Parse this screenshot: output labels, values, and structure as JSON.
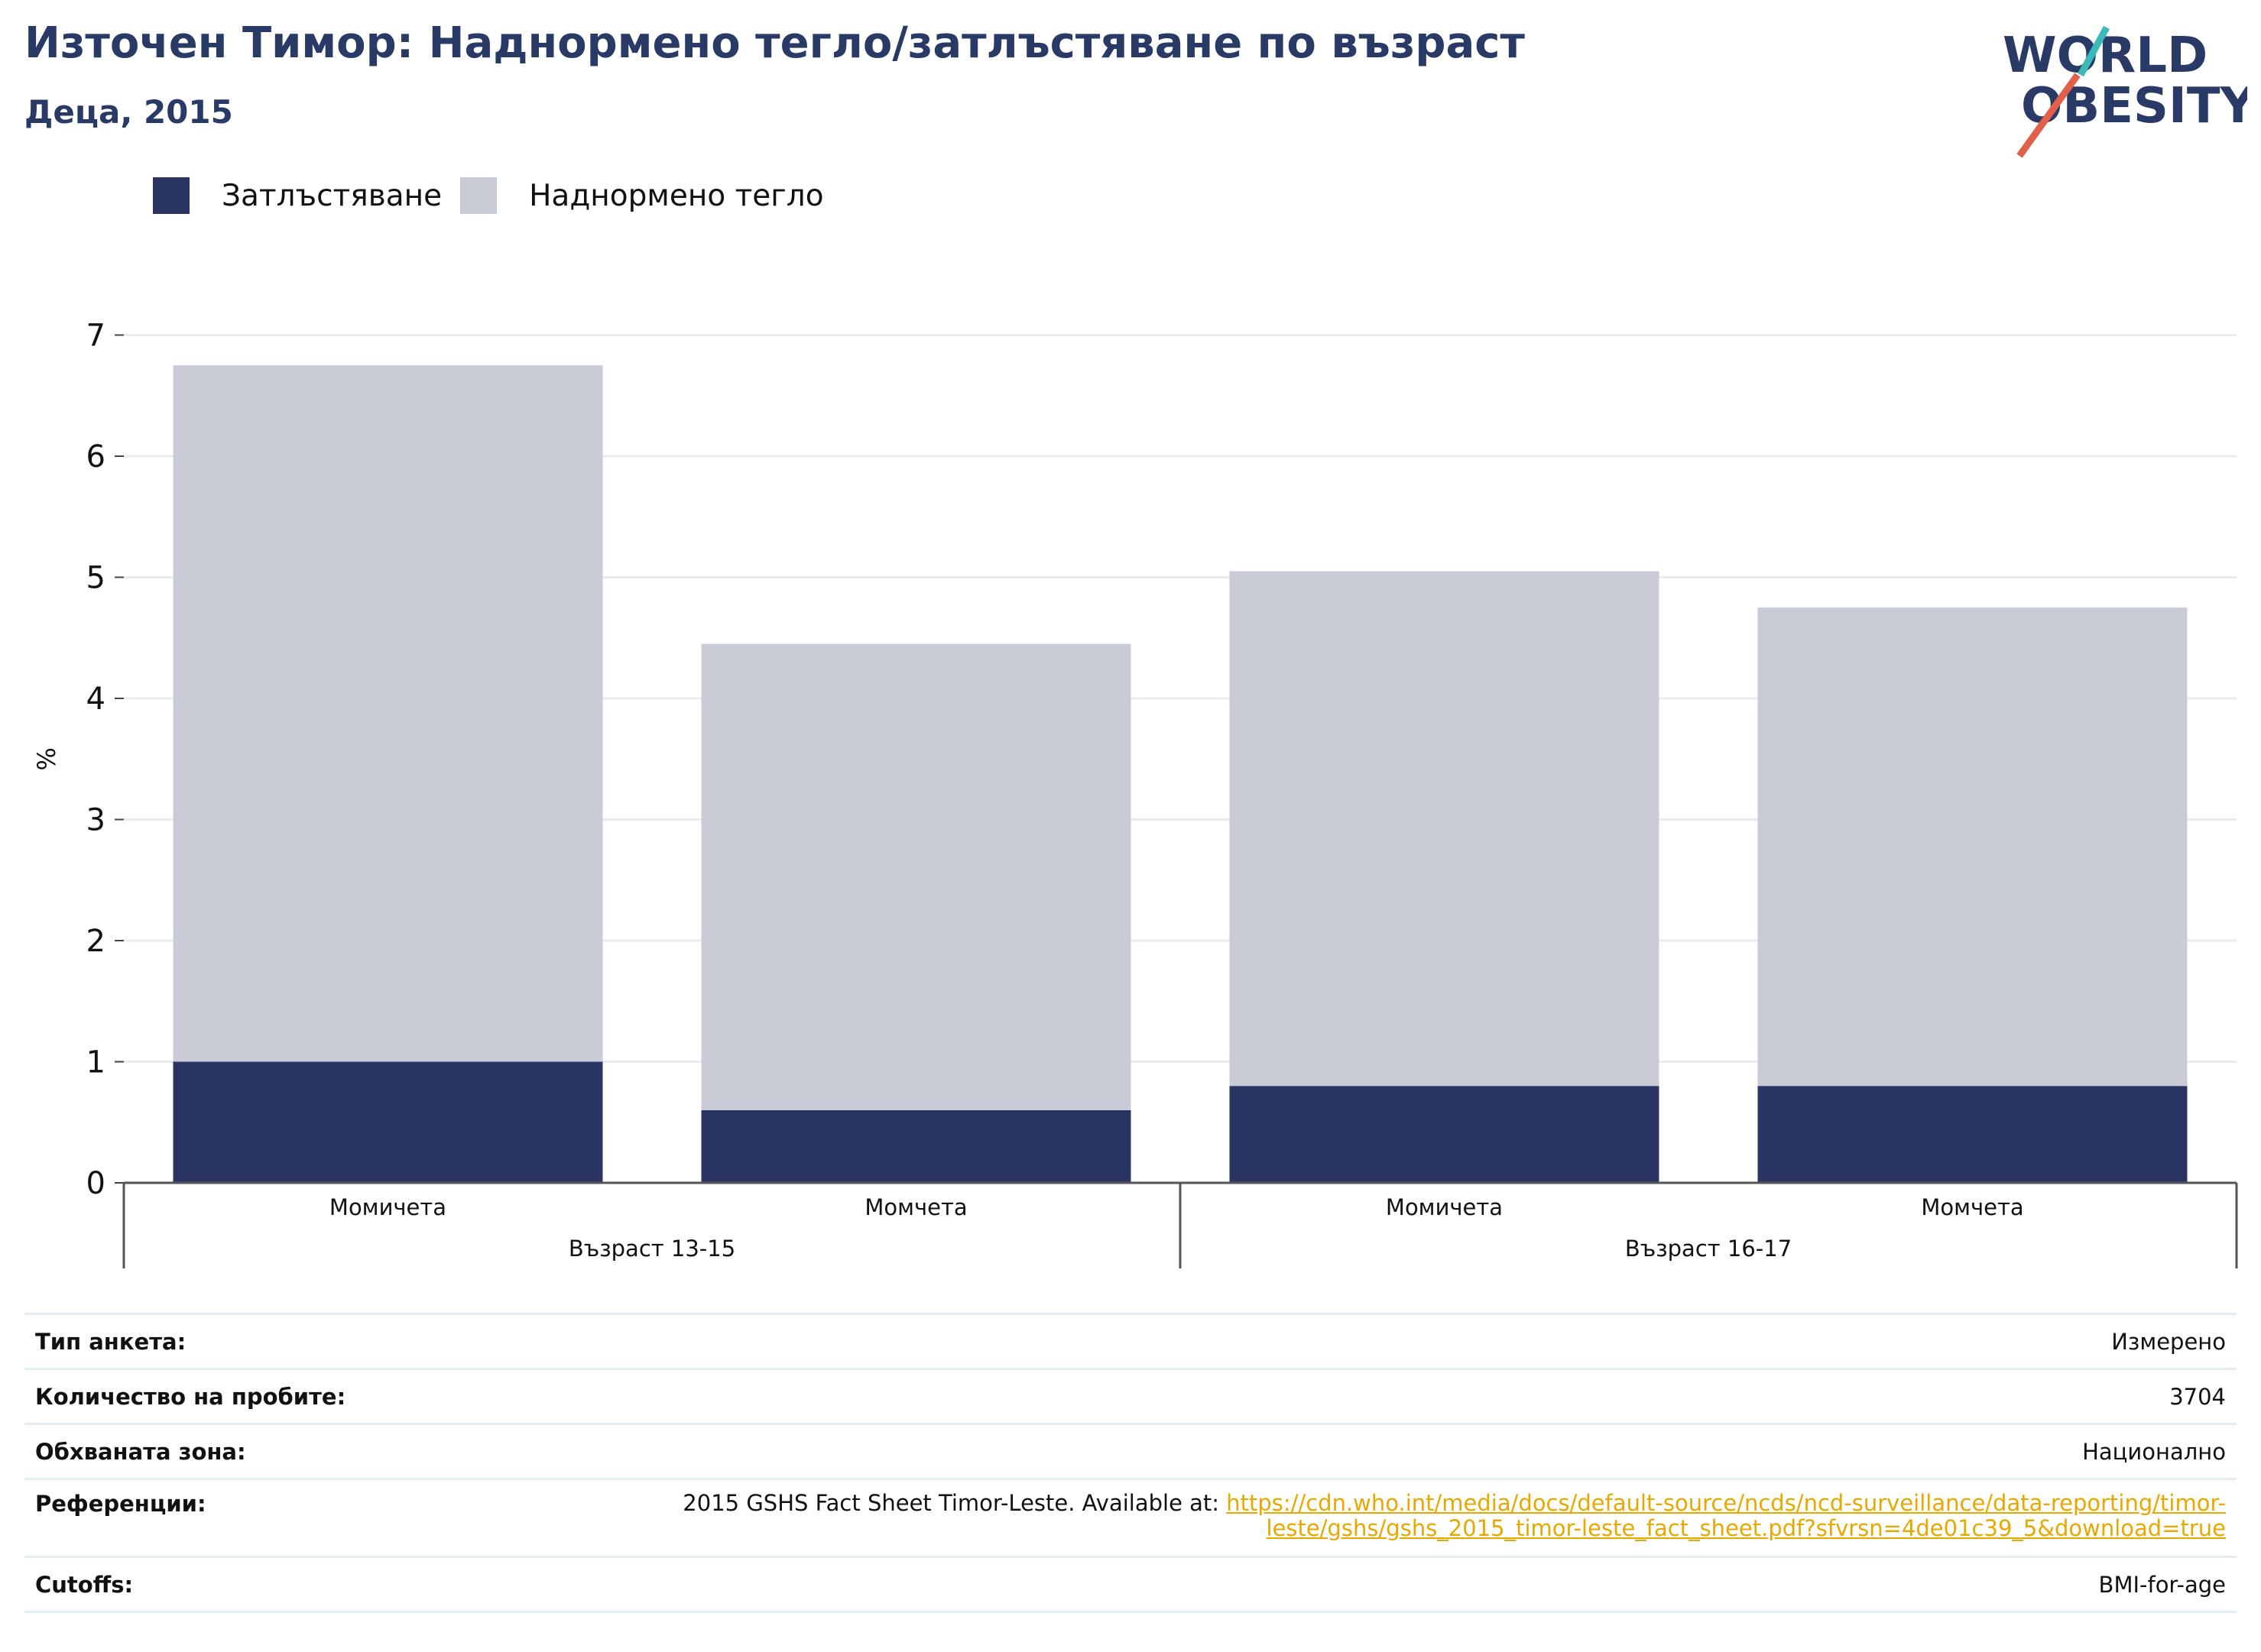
{
  "header": {
    "title": "Източен Тимор: Наднормено тегло/затлъстяване по възраст",
    "subtitle": "Деца, 2015"
  },
  "logo": {
    "line1": "WORLD",
    "line2": "OBESITY"
  },
  "legend": {
    "obesity": "Затлъстяване",
    "overweight": "Наднормено тегло"
  },
  "colors": {
    "obesity": "#2a3564",
    "overweight": "#c9cbd6",
    "title": "#2a3a66",
    "link": "#e8a800",
    "logo_teal": "#3bb8b8",
    "logo_red": "#e2604a"
  },
  "chart_data": {
    "type": "bar",
    "stacked": true,
    "ylabel": "%",
    "ylim": [
      0,
      7
    ],
    "yticks": [
      0,
      1,
      2,
      3,
      4,
      5,
      6,
      7
    ],
    "grid": true,
    "legend_position": "top-left",
    "categories": [
      "Момичета",
      "Момчета",
      "Момичета",
      "Момчета"
    ],
    "groups": [
      {
        "label": "Възраст 13-15",
        "categories": [
          "Момичета",
          "Момчета"
        ]
      },
      {
        "label": "Възраст 16-17",
        "categories": [
          "Момичета",
          "Момчета"
        ]
      }
    ],
    "series": [
      {
        "name": "Затлъстяване",
        "values": [
          1.0,
          0.6,
          0.8,
          0.8
        ]
      },
      {
        "name": "Наднормено тегло",
        "values": [
          5.75,
          3.85,
          4.25,
          3.95
        ]
      }
    ]
  },
  "meta": {
    "survey_type_label": "Тип анкета:",
    "survey_type_value": "Измерено",
    "sample_size_label": "Количество на пробите:",
    "sample_size_value": "3704",
    "area_label": "Обхваната зона:",
    "area_value": "Национално",
    "references_label": "Референции:",
    "references_text": "2015 GSHS Fact Sheet Timor-Leste. Available at: ",
    "references_link": "https://cdn.who.int/media/docs/default-source/ncds/ncd-surveillance/data-reporting/timor-leste/gshs/gshs_2015_timor-leste_fact_sheet.pdf?sfvrsn=4de01c39_5&download=true",
    "cutoffs_label": "Cutoffs:",
    "cutoffs_value": "BMI-for-age"
  }
}
